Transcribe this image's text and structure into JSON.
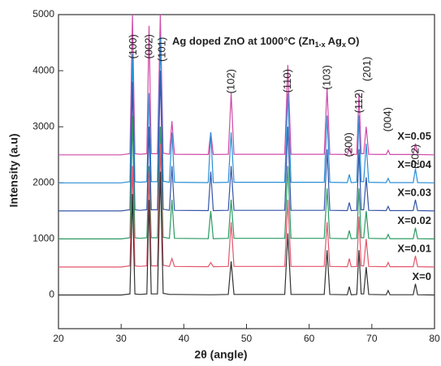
{
  "chart_data": {
    "type": "line",
    "title": [
      "Ag doped ZnO at 1000°C (Zn",
      "1-x",
      "Ag",
      "x",
      "O)"
    ],
    "xlabel": "2θ (angle)",
    "ylabel": "Intensity (a.u)",
    "xlim": [
      20,
      80
    ],
    "ylim": [
      -600,
      5000
    ],
    "xticks": [
      20,
      30,
      40,
      50,
      60,
      70,
      80
    ],
    "yticks": [
      0,
      1000,
      2000,
      3000,
      4000,
      5000
    ],
    "x": [
      20,
      30,
      31.4,
      31.8,
      32.2,
      33,
      34.1,
      34.45,
      34.8,
      35.8,
      36.25,
      36.7,
      37.7,
      38.1,
      38.5,
      43.9,
      44.3,
      44.7,
      47.1,
      47.55,
      48,
      56.1,
      56.6,
      57.1,
      62.4,
      62.85,
      63.3,
      66.1,
      66.4,
      66.7,
      67.6,
      67.95,
      68.3,
      68.7,
      69.1,
      69.5,
      72.3,
      72.6,
      72.9,
      76.6,
      76.95,
      77.3,
      80
    ],
    "series": [
      {
        "name": "X=0.05",
        "color": "#d04aa8",
        "values": [
          2500,
          2500,
          2520,
          5000,
          2520,
          2510,
          2520,
          4800,
          2520,
          2520,
          5000,
          2530,
          2510,
          3100,
          2510,
          2505,
          2900,
          2505,
          2510,
          3600,
          2510,
          2510,
          4100,
          2510,
          2510,
          3700,
          2510,
          2505,
          2650,
          2505,
          2510,
          3600,
          2520,
          2520,
          3000,
          2510,
          2505,
          2580,
          2505,
          2505,
          2700,
          2505,
          2500
        ]
      },
      {
        "name": "X=0.04",
        "color": "#2b8fd6",
        "values": [
          2000,
          2000,
          2020,
          4300,
          2020,
          2010,
          2020,
          3600,
          2020,
          2020,
          4600,
          2030,
          2010,
          2900,
          2010,
          2005,
          2900,
          2005,
          2010,
          2900,
          2010,
          2010,
          3600,
          2010,
          2010,
          3200,
          2010,
          2005,
          2150,
          2005,
          2010,
          3200,
          2020,
          2020,
          2700,
          2010,
          2005,
          2080,
          2005,
          2005,
          2250,
          2005,
          2000
        ]
      },
      {
        "name": "X=0.03",
        "color": "#3554a8",
        "values": [
          1500,
          1500,
          1520,
          3800,
          1520,
          1510,
          1520,
          3000,
          1520,
          1520,
          4000,
          1530,
          1510,
          2300,
          1510,
          1505,
          2200,
          1505,
          1510,
          2300,
          1510,
          1510,
          3000,
          1510,
          1510,
          2600,
          1510,
          1505,
          1650,
          1505,
          1510,
          2600,
          1520,
          1520,
          2100,
          1510,
          1505,
          1580,
          1505,
          1505,
          1700,
          1505,
          1500
        ]
      },
      {
        "name": "X=0.02",
        "color": "#2a9a62",
        "values": [
          1000,
          1000,
          1020,
          3200,
          1020,
          1010,
          1020,
          2300,
          1020,
          1020,
          3000,
          1030,
          1010,
          1700,
          1010,
          1005,
          1500,
          1005,
          1010,
          1700,
          1010,
          1010,
          2300,
          1010,
          1010,
          1900,
          1010,
          1005,
          1150,
          1005,
          1010,
          1900,
          1020,
          1020,
          1500,
          1010,
          1005,
          1080,
          1005,
          1005,
          1200,
          1005,
          1000
        ]
      },
      {
        "name": "X=0.01",
        "color": "#e2566a",
        "values": [
          500,
          500,
          520,
          2300,
          520,
          510,
          520,
          2200,
          520,
          520,
          2700,
          530,
          510,
          650,
          510,
          505,
          580,
          505,
          510,
          1300,
          510,
          510,
          1700,
          510,
          510,
          1300,
          510,
          505,
          650,
          505,
          510,
          1400,
          520,
          520,
          1000,
          510,
          505,
          580,
          505,
          505,
          700,
          505,
          500
        ]
      },
      {
        "name": "X=0",
        "color": "#333333",
        "values": [
          0,
          0,
          20,
          1800,
          20,
          10,
          20,
          1700,
          20,
          20,
          2200,
          30,
          10,
          10,
          10,
          5,
          5,
          5,
          10,
          600,
          10,
          10,
          1100,
          10,
          10,
          800,
          10,
          5,
          150,
          5,
          10,
          800,
          20,
          20,
          500,
          10,
          5,
          80,
          5,
          5,
          200,
          5,
          0
        ]
      }
    ],
    "annotations": [
      {
        "text": "(100)",
        "x": 32,
        "y": 4650
      },
      {
        "text": "(002)",
        "x": 34.5,
        "y": 4650
      },
      {
        "text": "(101)",
        "x": 36.6,
        "y": 4600
      },
      {
        "text": "(102)",
        "x": 47.6,
        "y": 4030
      },
      {
        "text": "(110)",
        "x": 56.6,
        "y": 4030
      },
      {
        "text": "(103)",
        "x": 62.9,
        "y": 4100
      },
      {
        "text": "(200)",
        "x": 66.4,
        "y": 2900
      },
      {
        "text": "(112)",
        "x": 68,
        "y": 3670
      },
      {
        "text": "(201)",
        "x": 69.3,
        "y": 4250
      },
      {
        "text": "(004)",
        "x": 72.6,
        "y": 3350
      },
      {
        "text": "(202)",
        "x": 77,
        "y": 2690
      }
    ]
  }
}
